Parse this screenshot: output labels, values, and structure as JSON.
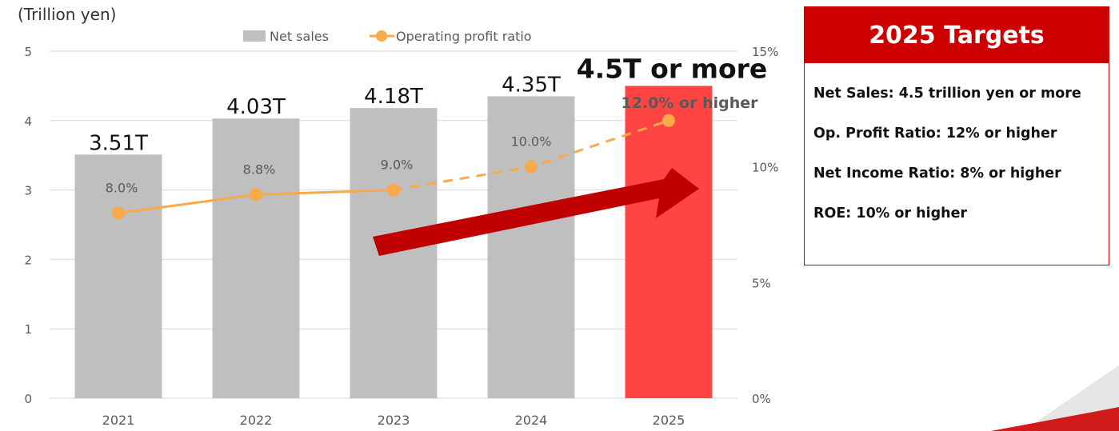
{
  "chart_data": {
    "type": "bar",
    "unit_label": "(Trillion yen)",
    "categories": [
      "2021",
      "2022",
      "2023",
      "2024",
      "2025"
    ],
    "series": [
      {
        "name": "Net sales",
        "kind": "bar",
        "axis": "left",
        "values": [
          3.51,
          4.03,
          4.18,
          4.35,
          4.5
        ],
        "data_labels": [
          "3.51T",
          "4.03T",
          "4.18T",
          "4.35T",
          "4.5T or more"
        ],
        "colors": [
          "#bfbfbf",
          "#bfbfbf",
          "#bfbfbf",
          "#bfbfbf",
          "#ff4444"
        ]
      },
      {
        "name": "Operating profit ratio",
        "kind": "line",
        "axis": "right",
        "values": [
          8.0,
          8.8,
          9.0,
          10.0,
          12.0
        ],
        "data_labels": [
          "8.0%",
          "8.8%",
          "9.0%",
          "10.0%",
          "12.0% or higher"
        ],
        "color": "#f9a84a",
        "solid_until_index": 2,
        "dashed_from_index": 2
      }
    ],
    "y_left": {
      "ticks": [
        "0",
        "1",
        "2",
        "3",
        "4",
        "5"
      ],
      "lim": [
        0,
        5
      ]
    },
    "y_right": {
      "ticks": [
        "0%",
        "5%",
        "10%",
        "15%"
      ],
      "lim": [
        0,
        15
      ]
    },
    "grid": true,
    "legend": "top-center",
    "annotation": "upward trend arrow (dark red)"
  },
  "targets": {
    "title": "2025 Targets",
    "items": [
      "Net Sales: 4.5 trillion yen or more",
      "Op. Profit Ratio: 12% or higher",
      "Net Income Ratio: 8% or higher",
      "ROE: 10% or higher"
    ]
  },
  "colors": {
    "bar": "#bfbfbf",
    "bar_highlight": "#ff4444",
    "line": "#f9a84a",
    "arrow": "#c00000",
    "accent": "#cc0000"
  }
}
